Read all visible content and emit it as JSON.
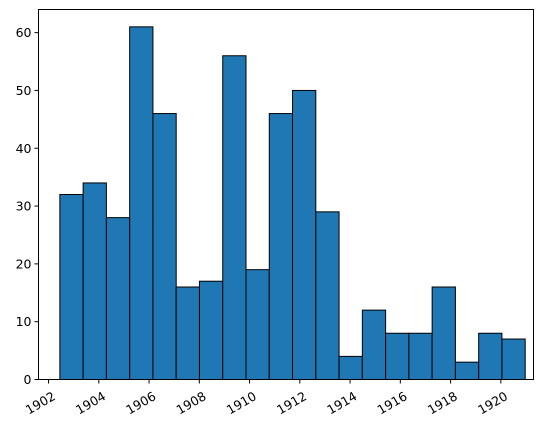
{
  "chart_data": {
    "type": "bar",
    "title": "",
    "xlabel": "",
    "ylabel": "",
    "bin_width_years": 0.926,
    "x_start": 1902.45,
    "xlim": [
      1901.6,
      1921.3
    ],
    "ylim": [
      0,
      64
    ],
    "grid": false,
    "bar_color": "#1f77b4",
    "edge_color": "#000000",
    "values": [
      32,
      34,
      28,
      61,
      46,
      16,
      17,
      56,
      19,
      46,
      50,
      29,
      4,
      12,
      8,
      8,
      16,
      3,
      8,
      7
    ],
    "x_ticks": [
      1902,
      1904,
      1906,
      1908,
      1910,
      1912,
      1914,
      1916,
      1918,
      1920
    ],
    "y_ticks": [
      0,
      10,
      20,
      30,
      40,
      50,
      60
    ]
  }
}
